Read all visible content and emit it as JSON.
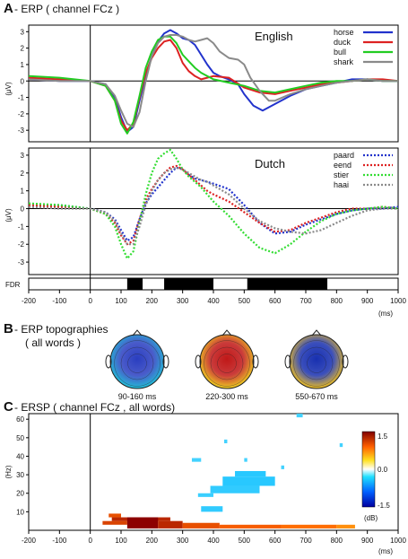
{
  "chart_data": [
    {
      "type": "line",
      "panel_letter": "A",
      "title": "- ERP ( channel FCz )",
      "subtitle": "English",
      "ylabel": "(μV)",
      "xlim": [
        -200,
        1000
      ],
      "ylim": [
        -3.7,
        3.4
      ],
      "yticks": [
        -3,
        -2,
        -1,
        0,
        1,
        2,
        3
      ],
      "line_style": "solid",
      "series": [
        {
          "name": "horse",
          "color": "#2233cc",
          "x": [
            -200,
            -100,
            0,
            50,
            80,
            100,
            120,
            140,
            160,
            180,
            200,
            220,
            240,
            260,
            280,
            300,
            320,
            340,
            360,
            380,
            400,
            420,
            450,
            480,
            500,
            530,
            560,
            600,
            650,
            700,
            750,
            800,
            850,
            900,
            950,
            1000
          ],
          "y": [
            0.1,
            0.0,
            0.0,
            -0.2,
            -1.0,
            -2.2,
            -3.1,
            -2.8,
            -1.2,
            0.3,
            1.5,
            2.4,
            2.9,
            3.1,
            2.9,
            2.6,
            2.5,
            2.2,
            1.6,
            1.0,
            0.5,
            0.3,
            0.1,
            -0.2,
            -0.8,
            -1.5,
            -1.8,
            -1.4,
            -0.9,
            -0.5,
            -0.3,
            -0.1,
            0.1,
            0.1,
            0.0,
            0.0
          ]
        },
        {
          "name": "duck",
          "color": "#dd2222",
          "x": [
            -200,
            -100,
            0,
            50,
            80,
            100,
            120,
            140,
            160,
            180,
            200,
            220,
            240,
            260,
            280,
            300,
            320,
            340,
            360,
            380,
            400,
            450,
            500,
            550,
            600,
            650,
            700,
            750,
            800,
            850,
            900,
            950,
            1000
          ],
          "y": [
            0.2,
            0.1,
            0.0,
            -0.3,
            -1.2,
            -2.4,
            -3.0,
            -2.6,
            -1.0,
            0.5,
            1.4,
            2.0,
            2.4,
            2.5,
            2.0,
            1.1,
            0.6,
            0.3,
            0.1,
            0.2,
            0.3,
            0.2,
            -0.4,
            -0.7,
            -0.8,
            -0.6,
            -0.4,
            -0.2,
            -0.1,
            0.0,
            0.1,
            0.1,
            0.0
          ]
        },
        {
          "name": "bull",
          "color": "#22cc22",
          "x": [
            -200,
            -100,
            0,
            50,
            80,
            100,
            120,
            140,
            160,
            180,
            200,
            220,
            240,
            260,
            280,
            300,
            320,
            340,
            360,
            380,
            400,
            450,
            500,
            550,
            600,
            650,
            700,
            750,
            800,
            850,
            900,
            950,
            1000
          ],
          "y": [
            0.3,
            0.2,
            0.0,
            -0.3,
            -1.2,
            -2.6,
            -3.2,
            -2.5,
            -0.9,
            0.8,
            1.8,
            2.5,
            2.7,
            2.7,
            2.3,
            1.6,
            1.2,
            0.8,
            0.5,
            0.3,
            0.1,
            -0.1,
            -0.3,
            -0.6,
            -0.7,
            -0.5,
            -0.3,
            -0.1,
            0.0,
            0.0,
            0.1,
            0.0,
            0.0
          ]
        },
        {
          "name": "shark",
          "color": "#8a8a8a",
          "x": [
            -200,
            -100,
            0,
            50,
            80,
            100,
            120,
            140,
            160,
            180,
            200,
            220,
            240,
            260,
            280,
            300,
            320,
            340,
            360,
            380,
            400,
            420,
            450,
            480,
            500,
            520,
            550,
            580,
            600,
            650,
            700,
            750,
            800,
            850,
            900,
            950,
            1000
          ],
          "y": [
            0.1,
            0.0,
            0.0,
            -0.2,
            -0.9,
            -1.8,
            -2.6,
            -2.8,
            -1.9,
            0.0,
            1.5,
            2.3,
            2.7,
            2.8,
            2.8,
            2.7,
            2.5,
            2.4,
            2.5,
            2.6,
            2.3,
            1.8,
            1.4,
            1.3,
            1.0,
            0.2,
            -0.6,
            -1.2,
            -1.2,
            -0.8,
            -0.5,
            -0.3,
            -0.1,
            0.0,
            0.1,
            0.0,
            0.0
          ]
        }
      ]
    },
    {
      "type": "line",
      "subtitle": "Dutch",
      "ylabel": "(μV)",
      "xlabel": "(ms)",
      "xlim": [
        -200,
        1000
      ],
      "xticks": [
        -200,
        -100,
        0,
        100,
        200,
        300,
        400,
        500,
        600,
        700,
        800,
        900,
        1000
      ],
      "ylim": [
        -3.7,
        3.4
      ],
      "yticks": [
        -3,
        -2,
        -1,
        0,
        1,
        2,
        3
      ],
      "line_style": "dotted",
      "series": [
        {
          "name": "paard",
          "color": "#2233cc",
          "x": [
            -200,
            -100,
            0,
            50,
            80,
            100,
            120,
            140,
            160,
            180,
            200,
            220,
            240,
            260,
            280,
            300,
            320,
            340,
            360,
            380,
            400,
            450,
            500,
            550,
            600,
            650,
            700,
            750,
            800,
            850,
            900,
            950,
            1000
          ],
          "y": [
            0.1,
            0.2,
            0.0,
            -0.2,
            -0.6,
            -1.2,
            -1.8,
            -1.6,
            -0.6,
            0.3,
            0.8,
            1.2,
            1.6,
            2.0,
            2.3,
            2.2,
            1.9,
            1.7,
            1.6,
            1.5,
            1.4,
            1.1,
            0.2,
            -0.8,
            -1.4,
            -1.3,
            -0.9,
            -0.6,
            -0.3,
            -0.1,
            0.0,
            0.0,
            0.1
          ]
        },
        {
          "name": "eend",
          "color": "#dd2222",
          "x": [
            -200,
            -100,
            0,
            50,
            80,
            100,
            120,
            140,
            160,
            180,
            200,
            220,
            240,
            260,
            280,
            300,
            320,
            340,
            360,
            380,
            400,
            450,
            500,
            550,
            600,
            650,
            700,
            750,
            800,
            850,
            900,
            950,
            1000
          ],
          "y": [
            0.2,
            0.1,
            0.0,
            -0.3,
            -0.8,
            -1.5,
            -2.0,
            -1.8,
            -0.6,
            0.5,
            1.1,
            1.6,
            2.0,
            2.3,
            2.4,
            2.2,
            1.9,
            1.6,
            1.3,
            1.0,
            0.8,
            0.4,
            -0.2,
            -0.8,
            -1.3,
            -1.2,
            -0.8,
            -0.5,
            -0.2,
            0.0,
            0.0,
            0.1,
            0.0
          ]
        },
        {
          "name": "stier",
          "color": "#33dd33",
          "x": [
            -200,
            -100,
            0,
            50,
            80,
            100,
            120,
            140,
            160,
            180,
            200,
            220,
            240,
            260,
            280,
            300,
            320,
            340,
            360,
            380,
            400,
            450,
            500,
            550,
            600,
            650,
            700,
            750,
            800,
            850,
            900,
            950,
            1000
          ],
          "y": [
            0.3,
            0.2,
            0.0,
            -0.3,
            -1.0,
            -2.0,
            -2.8,
            -2.4,
            -0.8,
            0.8,
            2.0,
            2.8,
            3.1,
            3.3,
            2.8,
            2.2,
            1.8,
            1.5,
            1.2,
            0.8,
            0.4,
            -0.4,
            -1.4,
            -2.2,
            -2.5,
            -2.0,
            -1.3,
            -0.7,
            -0.3,
            -0.1,
            0.0,
            0.1,
            0.0
          ]
        },
        {
          "name": "haai",
          "color": "#8a8a8a",
          "x": [
            -200,
            -100,
            0,
            50,
            80,
            100,
            120,
            140,
            160,
            180,
            200,
            220,
            240,
            260,
            280,
            300,
            320,
            340,
            360,
            380,
            400,
            450,
            500,
            550,
            600,
            650,
            700,
            750,
            800,
            850,
            900,
            950,
            1000
          ],
          "y": [
            0.1,
            0.0,
            0.0,
            -0.2,
            -0.7,
            -1.4,
            -2.0,
            -2.0,
            -1.0,
            0.2,
            1.0,
            1.6,
            2.0,
            2.2,
            2.3,
            2.2,
            2.0,
            1.8,
            1.6,
            1.5,
            1.3,
            0.8,
            0.0,
            -0.7,
            -1.1,
            -1.3,
            -1.4,
            -1.2,
            -0.8,
            -0.4,
            -0.1,
            0.0,
            0.0
          ]
        }
      ],
      "fdr_label": "FDR",
      "fdr_significant_ms": [
        [
          120,
          170
        ],
        [
          240,
          400
        ],
        [
          510,
          770
        ]
      ]
    },
    {
      "type": "topography",
      "panel_letter": "B",
      "title": "- ERP topographies",
      "subtitle": "( all words )",
      "maps": [
        {
          "label": "90-160 ms",
          "center_color": "#2a3ec0",
          "edge_color": "#22c0d8"
        },
        {
          "label": "220-300 ms",
          "center_color": "#c01818",
          "edge_color": "#f0d020"
        },
        {
          "label": "550-670 ms",
          "center_color": "#1830b0",
          "edge_color": "#f0c020"
        }
      ]
    },
    {
      "type": "heatmap",
      "panel_letter": "C",
      "title": "- ERSP ( channel FCz , all words)",
      "ylabel": "(Hz)",
      "xlabel": "(ms)",
      "xlim": [
        -200,
        1000
      ],
      "xticks": [
        -200,
        -100,
        0,
        100,
        200,
        300,
        400,
        500,
        600,
        700,
        800,
        900,
        1000
      ],
      "ylim": [
        0,
        63
      ],
      "yticks": [
        10,
        20,
        30,
        40,
        50,
        60
      ],
      "colorbar": {
        "min": -1.5,
        "max": 1.5,
        "ticks": [
          "1.5",
          "0.0",
          "-1.5"
        ],
        "unit": "(dB)"
      },
      "cells": [
        {
          "t0": 60,
          "t1": 100,
          "f0": 7,
          "f1": 9,
          "v": 0.9
        },
        {
          "t0": 70,
          "t1": 260,
          "f0": 5,
          "f1": 7,
          "v": 1.2
        },
        {
          "t0": 40,
          "t1": 120,
          "f0": 3,
          "f1": 5,
          "v": 1.0
        },
        {
          "t0": 120,
          "t1": 220,
          "f0": 1,
          "f1": 7,
          "v": 1.5
        },
        {
          "t0": 220,
          "t1": 300,
          "f0": 1,
          "f1": 5,
          "v": 1.2
        },
        {
          "t0": 300,
          "t1": 420,
          "f0": 1,
          "f1": 4,
          "v": 0.9
        },
        {
          "t0": 420,
          "t1": 620,
          "f0": 1,
          "f1": 3,
          "v": 0.8
        },
        {
          "t0": 620,
          "t1": 800,
          "f0": 1,
          "f1": 3,
          "v": 0.7
        },
        {
          "t0": 800,
          "t1": 860,
          "f0": 1,
          "f1": 3,
          "v": 0.5
        },
        {
          "t0": 360,
          "t1": 430,
          "f0": 10,
          "f1": 13,
          "v": -0.8
        },
        {
          "t0": 470,
          "t1": 570,
          "f0": 29,
          "f1": 32,
          "v": -0.9
        },
        {
          "t0": 430,
          "t1": 600,
          "f0": 24,
          "f1": 29,
          "v": -0.9
        },
        {
          "t0": 390,
          "t1": 550,
          "f0": 20,
          "f1": 24,
          "v": -0.8
        },
        {
          "t0": 350,
          "t1": 400,
          "f0": 18,
          "f1": 20,
          "v": -0.7
        },
        {
          "t0": 330,
          "t1": 360,
          "f0": 37,
          "f1": 39,
          "v": -0.6
        },
        {
          "t0": 500,
          "t1": 510,
          "f0": 37,
          "f1": 39,
          "v": -0.6
        },
        {
          "t0": 435,
          "t1": 445,
          "f0": 47,
          "f1": 49,
          "v": -0.6
        },
        {
          "t0": 620,
          "t1": 630,
          "f0": 33,
          "f1": 35,
          "v": -0.6
        },
        {
          "t0": 810,
          "t1": 820,
          "f0": 45,
          "f1": 47,
          "v": -0.6
        },
        {
          "t0": 670,
          "t1": 690,
          "f0": 61,
          "f1": 63,
          "v": -0.6
        }
      ]
    }
  ]
}
